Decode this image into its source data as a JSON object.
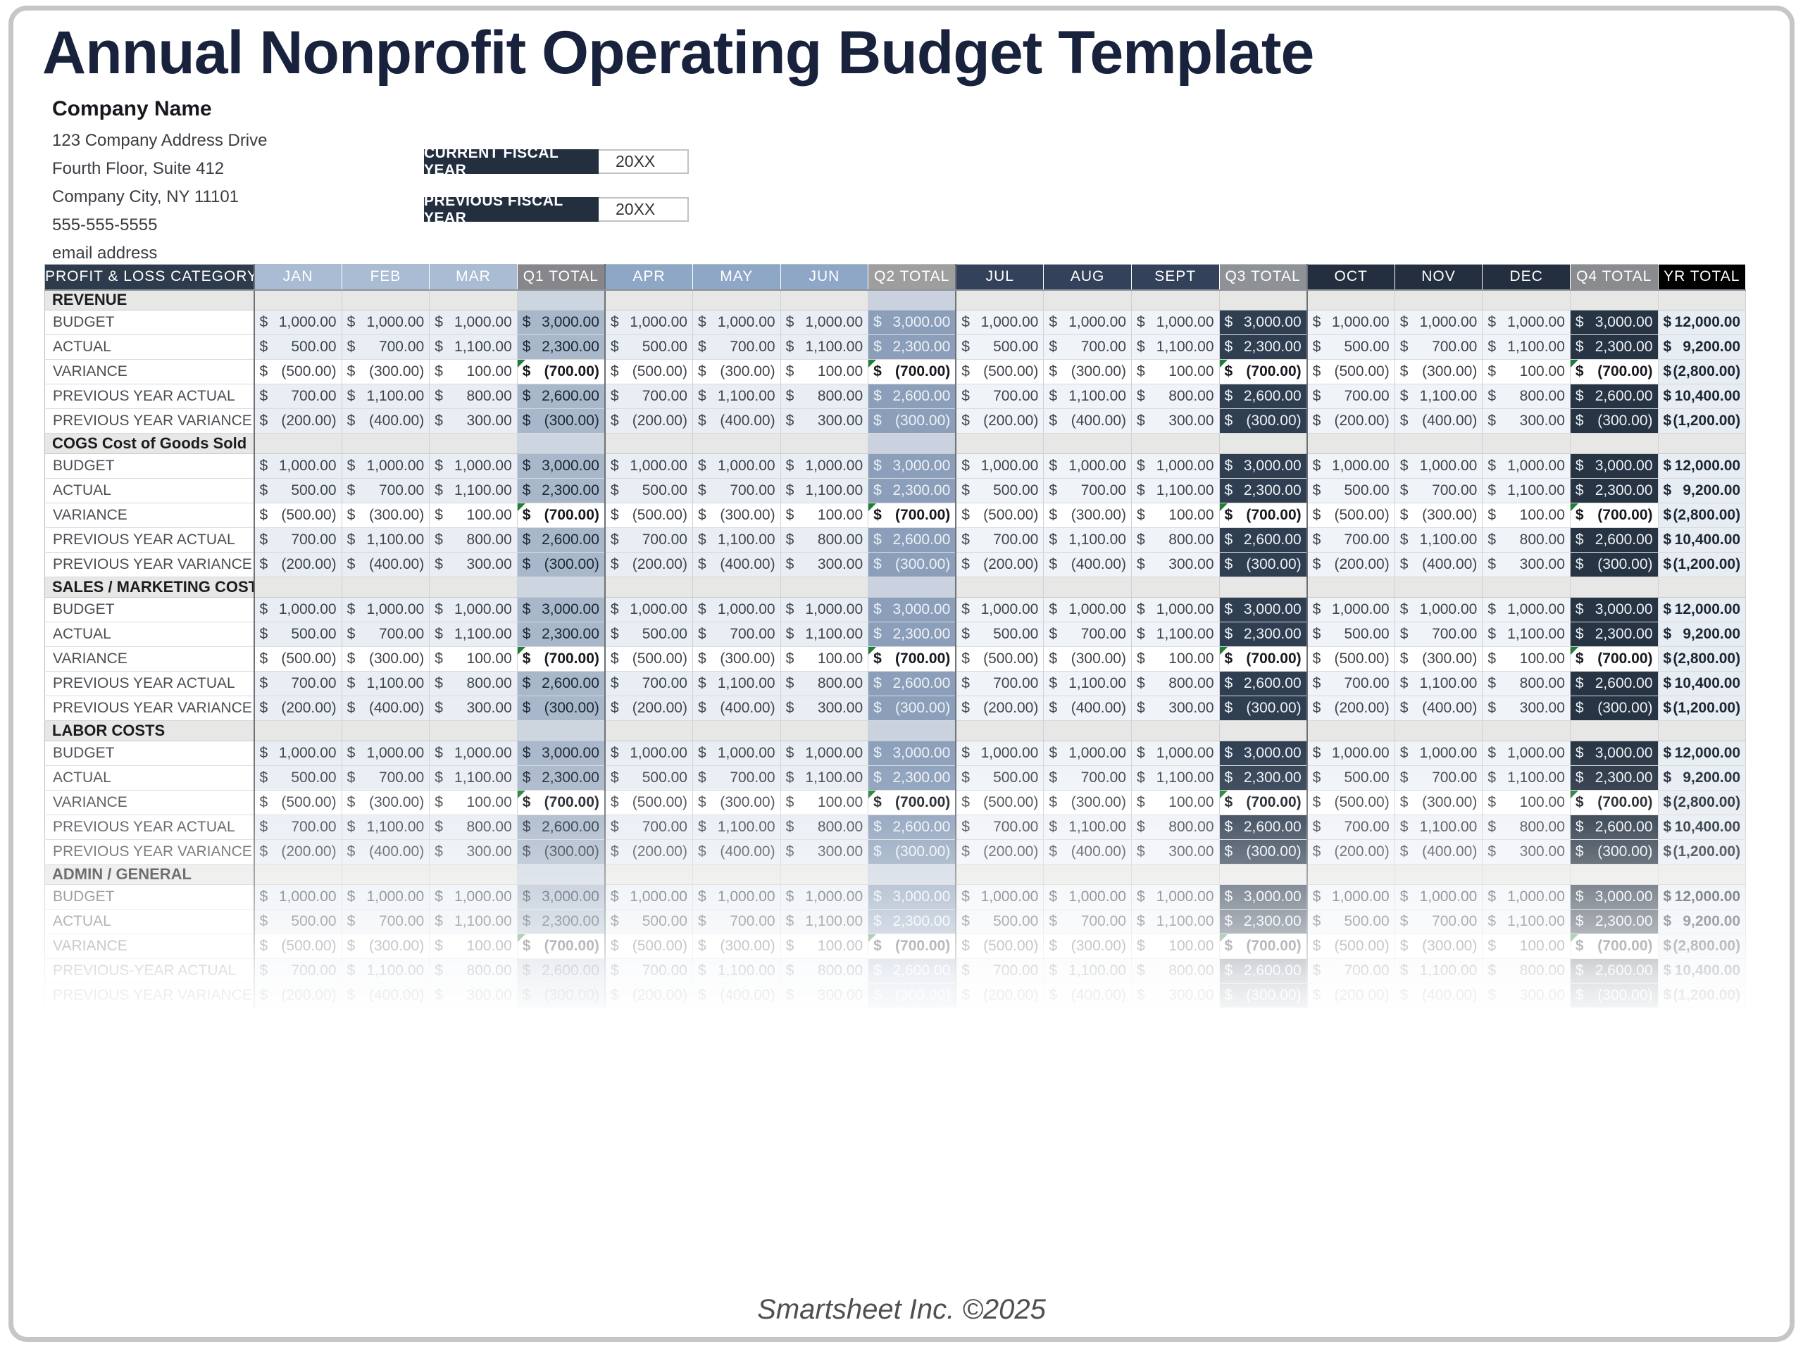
{
  "title": "Annual Nonprofit Operating Budget Template",
  "company": {
    "name": "Company Name",
    "address_line1": "123 Company Address Drive",
    "address_line2": "Fourth Floor, Suite 412",
    "address_line3": "Company City, NY  11101",
    "phone": "555-555-5555",
    "email": "email address"
  },
  "fiscal": {
    "current": {
      "label": "CURRENT FISCAL YEAR",
      "value": "20XX"
    },
    "previous": {
      "label": "PREVIOUS FISCAL YEAR",
      "value": "20XX"
    }
  },
  "table": {
    "category_header": "PROFIT & LOSS CATEGORY",
    "year_total_header": "YR TOTAL",
    "quarters": [
      {
        "key": "q1",
        "months": [
          "JAN",
          "FEB",
          "MAR"
        ],
        "total_label": "Q1 TOTAL"
      },
      {
        "key": "q2",
        "months": [
          "APR",
          "MAY",
          "JUN"
        ],
        "total_label": "Q2 TOTAL"
      },
      {
        "key": "q3",
        "months": [
          "JUL",
          "AUG",
          "SEPT"
        ],
        "total_label": "Q3 TOTAL"
      },
      {
        "key": "q4",
        "months": [
          "OCT",
          "NOV",
          "DEC"
        ],
        "total_label": "Q4 TOTAL"
      }
    ],
    "sections": [
      {
        "name": "REVENUE"
      },
      {
        "name": "COGS Cost of Goods Sold"
      },
      {
        "name": "SALES / MARKETING COSTS"
      },
      {
        "name": "LABOR COSTS"
      },
      {
        "name": "ADMIN / GENERAL",
        "row_label_overrides": {
          "3": "PREVIOUS-YEAR ACTUAL"
        }
      }
    ],
    "rows": [
      {
        "label": "BUDGET",
        "currency": "$",
        "months": [
          "1,000.00",
          "1,000.00",
          "1,000.00"
        ],
        "quarter_total": "3,000.00",
        "year_total": "12,000.00",
        "is_variance": false
      },
      {
        "label": "ACTUAL",
        "currency": "$",
        "months": [
          "500.00",
          "700.00",
          "1,100.00"
        ],
        "quarter_total": "2,300.00",
        "year_total": "9,200.00",
        "is_variance": false
      },
      {
        "label": "VARIANCE",
        "currency": "$",
        "months": [
          "(500.00)",
          "(300.00)",
          "100.00"
        ],
        "quarter_total": "(700.00)",
        "year_total": "(2,800.00)",
        "is_variance": true
      },
      {
        "label": "PREVIOUS YEAR ACTUAL",
        "currency": "$",
        "months": [
          "700.00",
          "1,100.00",
          "800.00"
        ],
        "quarter_total": "2,600.00",
        "year_total": "10,400.00",
        "is_variance": false
      },
      {
        "label": "PREVIOUS YEAR VARIANCE",
        "currency": "$",
        "months": [
          "(200.00)",
          "(400.00)",
          "300.00"
        ],
        "quarter_total": "(300.00)",
        "year_total": "(1,200.00)",
        "is_variance": false
      }
    ]
  },
  "footer": {
    "text": "Smartsheet Inc. ©2025"
  },
  "colors": {
    "title_text": "#18223C",
    "frame_border": "#C6C6C6",
    "fiscal_box_bg": "#232E3F",
    "fiscal_box_text": "#FFFFFF",
    "category_header_bg": "#2E3B4C",
    "q1_month_header_bg": "#A9BCD4",
    "q2_month_header_bg": "#8FA7C6",
    "q3_month_header_bg": "#33425A",
    "q4_month_header_bg": "#232F3F",
    "q1_total_header_bg": "#87868A",
    "q2_total_header_bg": "#9E9E9E",
    "q3_total_header_bg": "#8E9296",
    "q4_total_header_bg": "#8A8B8E",
    "yr_total_header_bg": "#000000",
    "header_text": "#FFFFFF",
    "month_cell_bg": "#E9EEF4",
    "month_cell_bg_light": "#F0F3F7",
    "variance_cell_bg": "#FFFFFF",
    "q1_total_cell_bg": "#A8B7CA",
    "q2_total_cell_bg": "#8B9FBA",
    "q3_total_cell_bg": "#2F3E51",
    "q4_total_cell_bg": "#273443",
    "yr_total_cell_bg": "#E8EDF3",
    "section_row_bg": "#E7E7E5",
    "section_q1_cell_bg": "#CDD5E1",
    "section_q2_cell_bg": "#CAD2DF",
    "cell_text": "#3E444B",
    "cell_text_dark": "#1C2633",
    "cell_text_light": "#EFF2F6",
    "row_label_text": "#4A4E53",
    "section_text": "#1A1C1F",
    "footer_text": "#4F4F4F",
    "flag_green": "#1E7D36"
  }
}
